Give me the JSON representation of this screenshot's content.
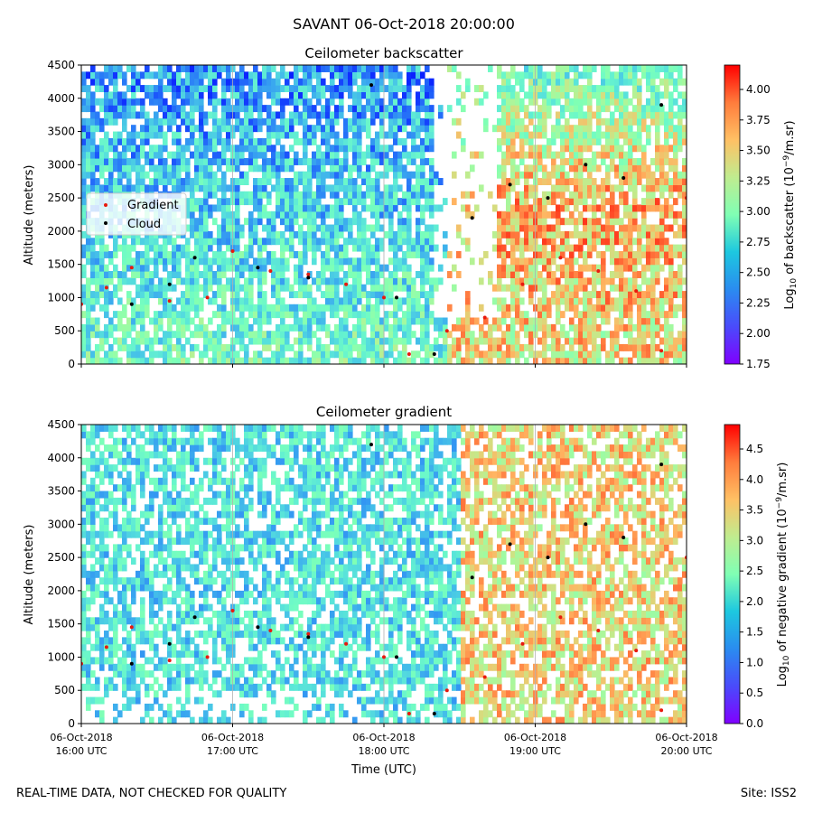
{
  "figure": {
    "suptitle": "SAVANT 06-Oct-2018 20:00:00",
    "footer_left": "REAL-TIME DATA, NOT CHECKED FOR QUALITY",
    "footer_right": "Site: ISS2",
    "xlabel": "Time (UTC)"
  },
  "x_ticks": [
    {
      "date": "06-Oct-2018",
      "time": "16:00 UTC",
      "hours": 16
    },
    {
      "date": "06-Oct-2018",
      "time": "17:00 UTC",
      "hours": 17
    },
    {
      "date": "06-Oct-2018",
      "time": "18:00 UTC",
      "hours": 18
    },
    {
      "date": "06-Oct-2018",
      "time": "19:00 UTC",
      "hours": 19
    },
    {
      "date": "06-Oct-2018",
      "time": "20:00 UTC",
      "hours": 20
    }
  ],
  "y_ticks": [
    "0",
    "500",
    "1000",
    "1500",
    "2000",
    "2500",
    "3000",
    "3500",
    "4000",
    "4500"
  ],
  "top_panel": {
    "title": "Ceilometer backscatter",
    "ylabel": "Altitude (meters)",
    "colorbar_label": "Log10 of backscatter (10^-9/m.sr)",
    "colorbar_ticks": [
      "1.75",
      "2.00",
      "2.25",
      "2.50",
      "2.75",
      "3.00",
      "3.25",
      "3.50",
      "3.75",
      "4.00"
    ],
    "legend": [
      "Gradient",
      "Cloud"
    ]
  },
  "bottom_panel": {
    "title": "Ceilometer gradient",
    "ylabel": "Altitude (meters)",
    "colorbar_label": "Log10 of negative gradient (10^-9/m.sr)",
    "colorbar_ticks": [
      "0.0",
      "0.5",
      "1.0",
      "1.5",
      "2.0",
      "2.5",
      "3.0",
      "3.5",
      "4.0",
      "4.5"
    ]
  },
  "chart_data": [
    {
      "type": "heatmap",
      "title": "Ceilometer backscatter",
      "xlabel": "",
      "ylabel": "Altitude (meters)",
      "xlim_utc": [
        "16:00",
        "20:00"
      ],
      "ylim": [
        0,
        4500
      ],
      "colorbar": {
        "label": "Log10 of backscatter (10^-9/m.sr)",
        "range": [
          1.75,
          4.2
        ],
        "colormap": "rainbow"
      },
      "legend": {
        "entries": [
          "Gradient",
          "Cloud"
        ],
        "colors": [
          "#e8190e",
          "#000000"
        ],
        "placement": "center-left"
      },
      "grid": "vertical",
      "series": [
        {
          "name": "Gradient",
          "time_utc": [
            "16:00",
            "16:10",
            "16:20",
            "16:35",
            "16:50",
            "17:00",
            "17:15",
            "17:30",
            "17:45",
            "18:00",
            "18:10",
            "18:25",
            "18:40",
            "18:55",
            "19:10",
            "19:25",
            "19:40",
            "19:50",
            "20:00"
          ],
          "y": [
            900,
            1150,
            1450,
            950,
            1000,
            1700,
            1400,
            1350,
            1200,
            1000,
            150,
            500,
            700,
            1200,
            1600,
            1400,
            1100,
            200,
            2500
          ]
        },
        {
          "name": "Cloud",
          "time_utc": [
            "16:20",
            "16:35",
            "16:45",
            "17:10",
            "17:30",
            "17:55",
            "18:05",
            "18:20",
            "18:35",
            "18:50",
            "19:05",
            "19:20",
            "19:35",
            "19:50"
          ],
          "y": [
            900,
            1200,
            1600,
            1450,
            1300,
            4200,
            1000,
            150,
            2200,
            2700,
            2500,
            3000,
            2800,
            3900
          ]
        }
      ]
    },
    {
      "type": "heatmap",
      "title": "Ceilometer gradient",
      "xlabel": "Time (UTC)",
      "ylabel": "Altitude (meters)",
      "xlim_utc": [
        "16:00",
        "20:00"
      ],
      "ylim": [
        0,
        4500
      ],
      "colorbar": {
        "label": "Log10 of negative gradient (10^-9/m.sr)",
        "range": [
          0.0,
          4.9
        ],
        "colormap": "rainbow"
      },
      "grid": "vertical",
      "series": [
        {
          "name": "Gradient",
          "time_utc": [
            "16:00",
            "16:10",
            "16:20",
            "16:35",
            "16:50",
            "17:00",
            "17:15",
            "17:30",
            "17:45",
            "18:00",
            "18:10",
            "18:25",
            "18:40",
            "18:55",
            "19:10",
            "19:25",
            "19:40",
            "19:50",
            "20:00"
          ],
          "y": [
            900,
            1150,
            1450,
            950,
            1000,
            1700,
            1400,
            1350,
            1200,
            1000,
            150,
            500,
            700,
            1200,
            1600,
            1400,
            1100,
            200,
            2500
          ]
        },
        {
          "name": "Cloud",
          "time_utc": [
            "16:20",
            "16:35",
            "16:45",
            "17:10",
            "17:30",
            "17:55",
            "18:05",
            "18:20",
            "18:35",
            "18:50",
            "19:05",
            "19:20",
            "19:35",
            "19:50"
          ],
          "y": [
            900,
            1200,
            1600,
            1450,
            1300,
            4200,
            1000,
            150,
            2200,
            2700,
            2500,
            3000,
            2800,
            3900
          ]
        }
      ]
    }
  ]
}
